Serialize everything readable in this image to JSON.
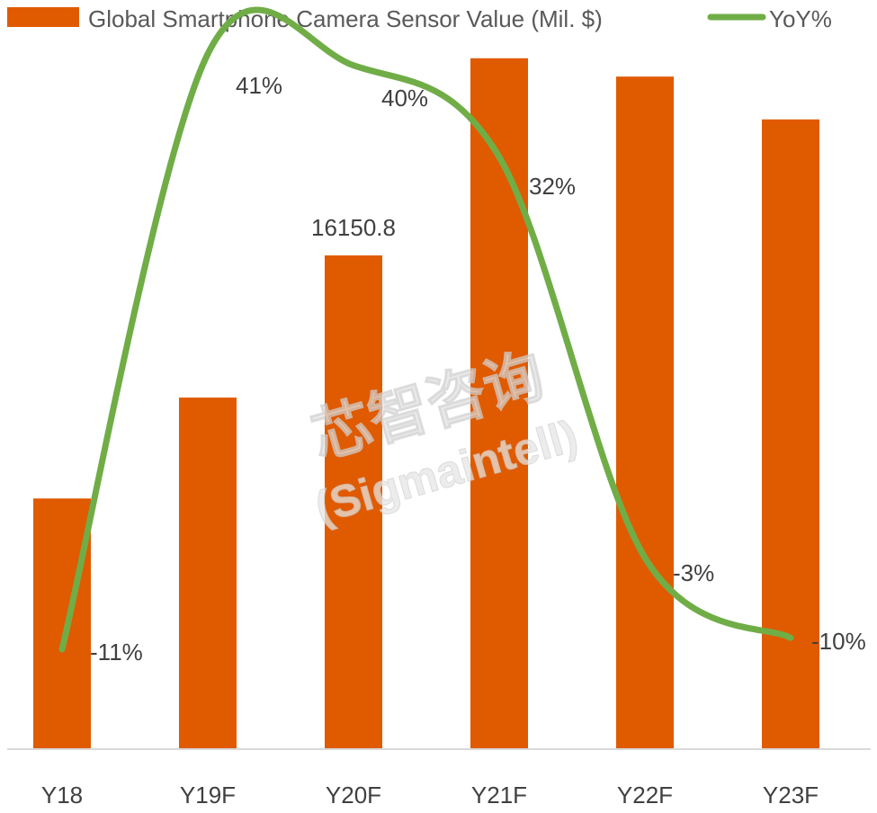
{
  "chart_data": {
    "type": "bar",
    "categories": [
      "Y18",
      "Y19F",
      "Y20F",
      "Y21F",
      "Y22F",
      "Y23F"
    ],
    "series": [
      {
        "name": "Global Smartphone Camera Sensor Value (Mil. $)",
        "type": "bar",
        "values": [
          8200,
          11500,
          16150.8,
          22600,
          22000,
          20600
        ],
        "data_labels": [
          "",
          "",
          "16150.8",
          "",
          "",
          ""
        ]
      },
      {
        "name": "YoY%",
        "type": "line",
        "values": [
          -11,
          41,
          40,
          32,
          -3,
          -10
        ],
        "data_labels": [
          "-11%",
          "41%",
          "40%",
          "32%",
          "-3%",
          "-10%"
        ]
      }
    ],
    "legend": "top",
    "grid": false,
    "colors": {
      "bar": "#E05A00",
      "line": "#70AD47",
      "axis": "#D9D9D9",
      "text": "#404040"
    }
  },
  "watermark": {
    "line1": "芯智咨询",
    "line2": "(Sigmaintell)"
  }
}
